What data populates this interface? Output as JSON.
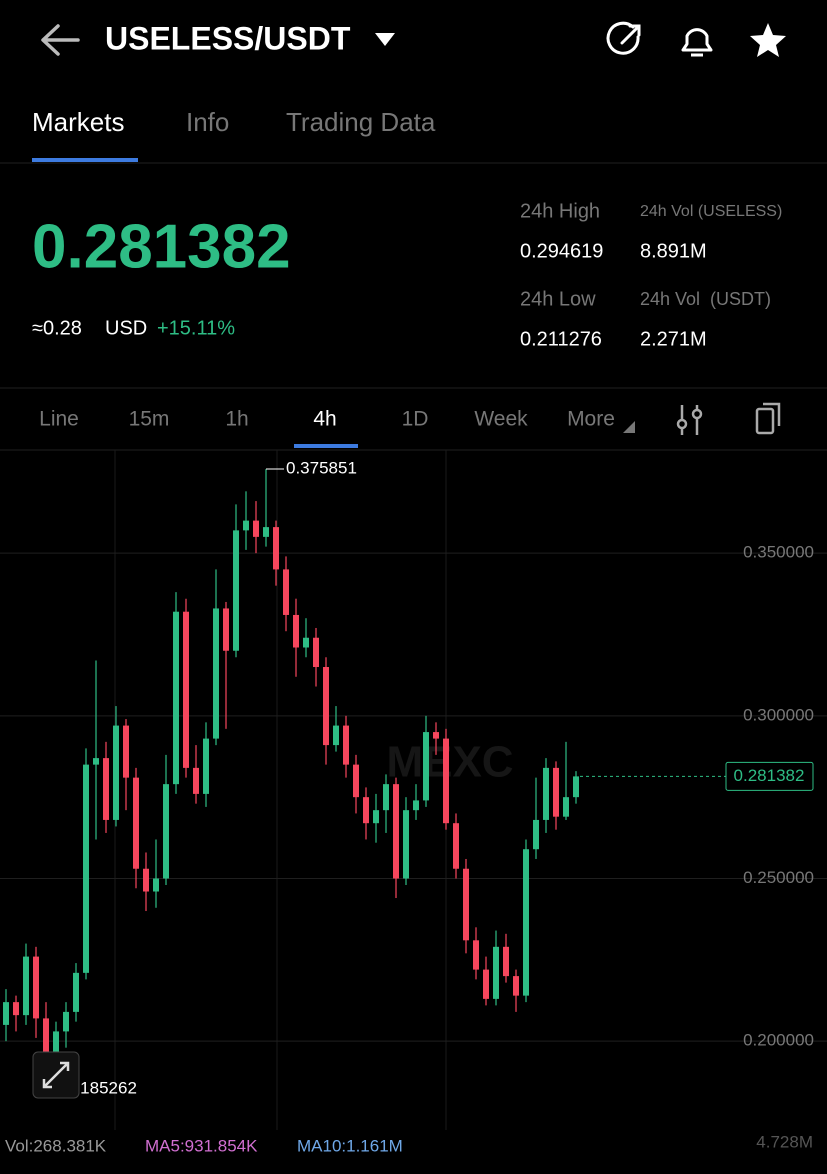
{
  "header": {
    "pair": "USELESS/USDT"
  },
  "tabs": [
    "Markets",
    "Info",
    "Trading Data"
  ],
  "ticker": {
    "price": "0.281382",
    "usd_approx": "≈0.28",
    "usd": "USD",
    "change": "+15.11%",
    "stats": [
      {
        "label": "24h High",
        "value": "0.294619"
      },
      {
        "label": "24h Vol (USELESS)",
        "value": "8.891M"
      },
      {
        "label": "24h Low",
        "value": "0.211276"
      },
      {
        "label": "24h Vol  (USDT)",
        "value": "2.271M"
      }
    ]
  },
  "intervals": [
    "Line",
    "15m",
    "1h",
    "4h",
    "1D",
    "Week",
    "More"
  ],
  "chart_data": {
    "type": "candlestick",
    "watermark": "MEXC",
    "open": [
      0.205,
      0.212,
      0.208,
      0.226,
      0.207,
      0.189,
      0.203,
      0.209,
      0.221,
      0.285,
      0.287,
      0.268,
      0.297,
      0.281,
      0.253,
      0.246,
      0.25,
      0.279,
      0.332,
      0.284,
      0.276,
      0.293,
      0.333,
      0.32,
      0.357,
      0.36,
      0.355,
      0.358,
      0.345,
      0.331,
      0.321,
      0.324,
      0.315,
      0.291,
      0.297,
      0.285,
      0.275,
      0.267,
      0.271,
      0.279,
      0.25,
      0.271,
      0.274,
      0.295,
      0.293,
      0.267,
      0.253,
      0.231,
      0.222,
      0.213,
      0.229,
      0.22,
      0.214,
      0.259,
      0.268,
      0.284,
      0.269,
      0.275
    ],
    "high": [
      0.216,
      0.214,
      0.23,
      0.229,
      0.212,
      0.206,
      0.212,
      0.224,
      0.29,
      0.317,
      0.292,
      0.303,
      0.299,
      0.284,
      0.258,
      0.262,
      0.288,
      0.338,
      0.336,
      0.291,
      0.298,
      0.345,
      0.335,
      0.365,
      0.369,
      0.366,
      0.375851,
      0.36,
      0.349,
      0.336,
      0.33,
      0.327,
      0.318,
      0.303,
      0.3,
      0.288,
      0.278,
      0.276,
      0.282,
      0.281,
      0.275,
      0.279,
      0.3,
      0.298,
      0.296,
      0.27,
      0.256,
      0.235,
      0.226,
      0.234,
      0.233,
      0.222,
      0.262,
      0.281,
      0.287,
      0.286,
      0.292,
      0.283
    ],
    "low": [
      0.2,
      0.203,
      0.205,
      0.201,
      0.185262,
      0.187,
      0.198,
      0.206,
      0.219,
      0.262,
      0.264,
      0.266,
      0.271,
      0.247,
      0.24,
      0.241,
      0.248,
      0.276,
      0.281,
      0.273,
      0.272,
      0.291,
      0.296,
      0.318,
      0.351,
      0.35,
      0.352,
      0.34,
      0.326,
      0.312,
      0.318,
      0.309,
      0.285,
      0.289,
      0.281,
      0.27,
      0.262,
      0.261,
      0.264,
      0.244,
      0.248,
      0.268,
      0.272,
      0.288,
      0.265,
      0.25,
      0.227,
      0.219,
      0.211,
      0.211,
      0.218,
      0.209,
      0.212,
      0.256,
      0.264,
      0.265,
      0.268,
      0.273
    ],
    "close": [
      0.212,
      0.208,
      0.226,
      0.207,
      0.189,
      0.203,
      0.209,
      0.221,
      0.285,
      0.287,
      0.268,
      0.297,
      0.281,
      0.253,
      0.246,
      0.25,
      0.279,
      0.332,
      0.284,
      0.276,
      0.293,
      0.333,
      0.32,
      0.357,
      0.36,
      0.355,
      0.358,
      0.345,
      0.331,
      0.321,
      0.324,
      0.315,
      0.291,
      0.297,
      0.285,
      0.275,
      0.267,
      0.271,
      0.279,
      0.25,
      0.271,
      0.274,
      0.295,
      0.293,
      0.267,
      0.253,
      0.231,
      0.222,
      0.213,
      0.229,
      0.22,
      0.214,
      0.259,
      0.268,
      0.284,
      0.269,
      0.275,
      0.281382
    ],
    "ylim": [
      0.1727,
      0.3817
    ],
    "yticks": [
      {
        "value": 0.2,
        "label": "0.200000"
      },
      {
        "value": 0.25,
        "label": "0.250000"
      },
      {
        "value": 0.3,
        "label": "0.300000"
      },
      {
        "value": 0.35,
        "label": "0.350000"
      }
    ],
    "grid": true,
    "colors": {
      "up": "#2ebd85",
      "down": "#f6465d"
    }
  },
  "volume": {
    "vol": "Vol:268.381K",
    "ma5": "MA5:931.854K",
    "ma10": "MA10:1.161M",
    "max": "4.728M"
  }
}
